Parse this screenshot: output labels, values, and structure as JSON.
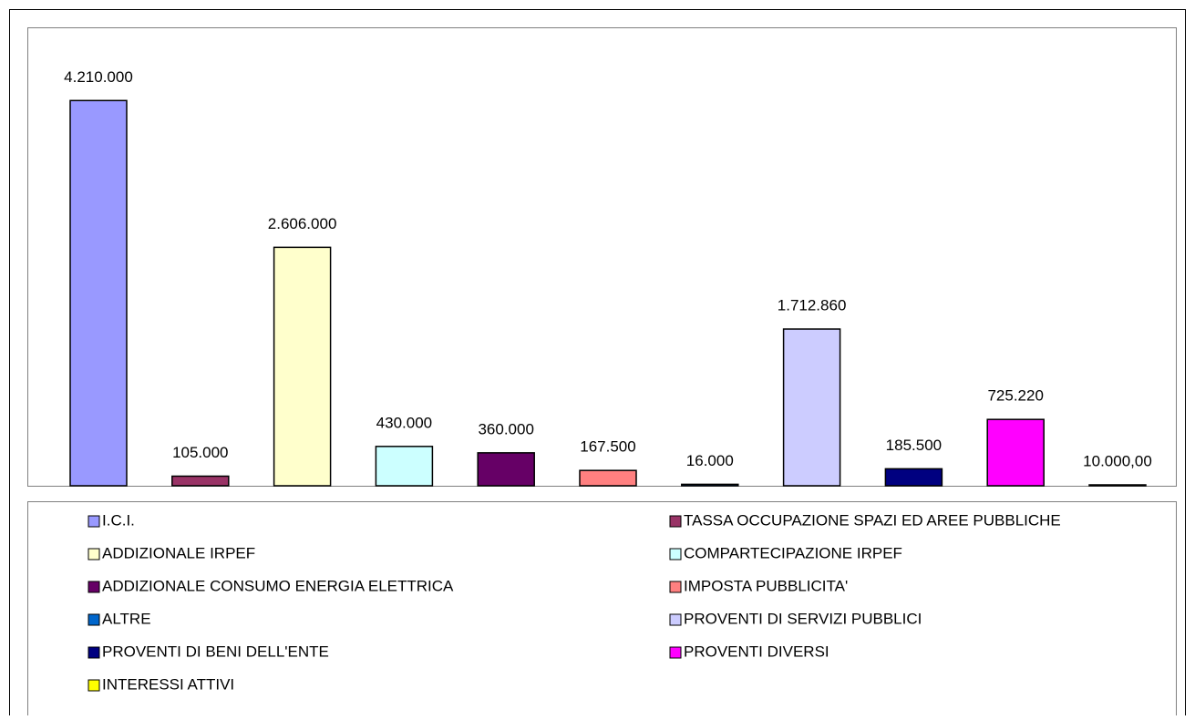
{
  "chart_data": {
    "type": "bar",
    "categories": [
      "I.C.I.",
      "TASSA OCCUPAZIONE SPAZI ED AREE PUBBLICHE",
      "ADDIZIONALE IRPEF",
      "COMPARTECIPAZIONE IRPEF",
      "ADDIZIONALE CONSUMO ENERGIA ELETTRICA",
      "IMPOSTA PUBBLICITA'",
      "ALTRE",
      "PROVENTI DI SERVIZI PUBBLICI",
      "PROVENTI DI BENI DELL'ENTE",
      "PROVENTI DIVERSI",
      "INTERESSI ATTIVI"
    ],
    "values": [
      4210000,
      105000,
      2606000,
      430000,
      360000,
      167500,
      16000,
      1712860,
      185500,
      725220,
      10000
    ],
    "value_labels": [
      "4.210.000",
      "105.000",
      "2.606.000",
      "430.000",
      "360.000",
      "167.500",
      "16.000",
      "1.712.860",
      "185.500",
      "725.220",
      "10.000,00"
    ],
    "colors": [
      "#9999ff",
      "#993366",
      "#ffffcc",
      "#ccffff",
      "#660066",
      "#ff8080",
      "#0066cc",
      "#ccccff",
      "#000080",
      "#ff00ff",
      "#ffff00"
    ],
    "ylim": [
      0,
      5000000
    ]
  }
}
